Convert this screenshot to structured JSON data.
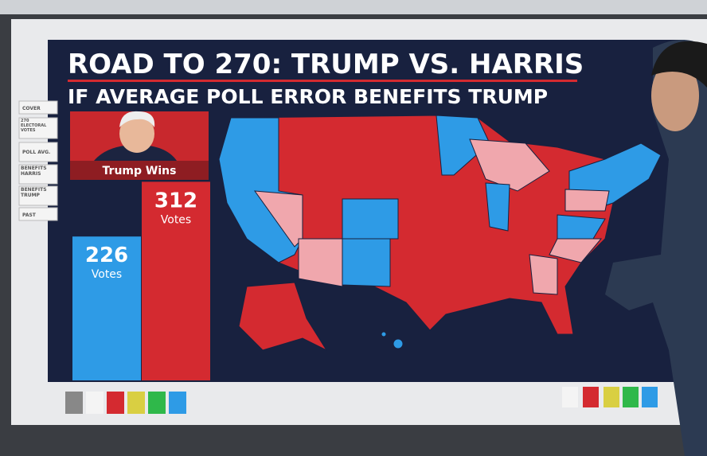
{
  "header": {
    "title": "ROAD TO 270: TRUMP VS. HARRIS",
    "subtitle": "IF AVERAGE POLL ERROR BENEFITS TRUMP"
  },
  "menu": [
    "COVER",
    "270 ELECTORAL VOTES",
    "POLL AVG.",
    "BENEFITS HARRIS",
    "BENEFITS TRUMP",
    "PAST"
  ],
  "results": {
    "winner_label": "Trump Wins",
    "trump": {
      "votes": 312,
      "unit": "Votes",
      "color": "#d42a30"
    },
    "harris": {
      "votes": 226,
      "unit": "Votes",
      "color": "#2e9be6"
    }
  }
}
